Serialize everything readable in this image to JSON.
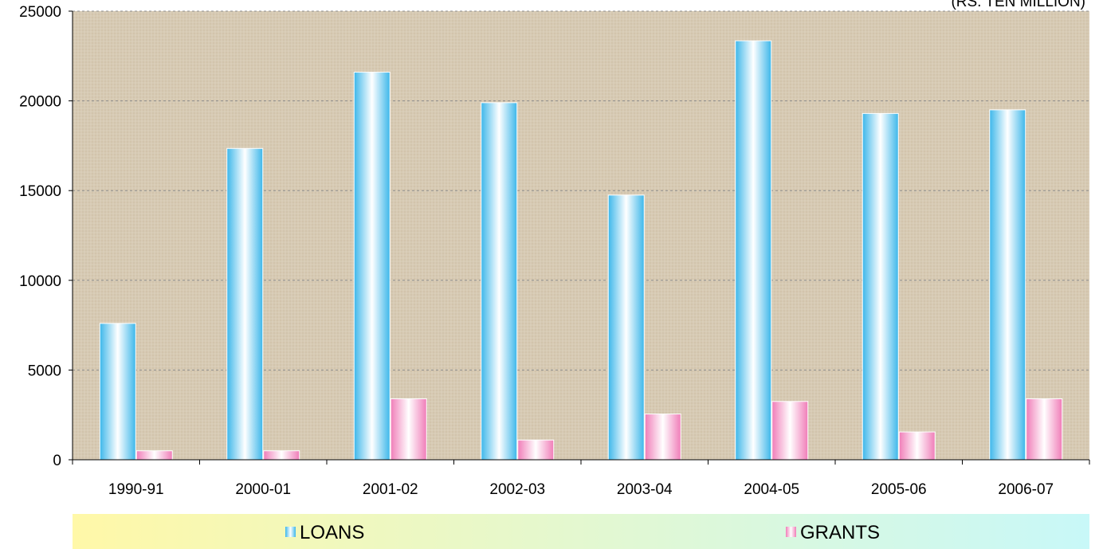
{
  "chart_data": {
    "type": "bar",
    "unit_label": "(RS. TEN MILLION)",
    "categories": [
      "1990-91",
      "2000-01",
      "2001-02",
      "2002-03",
      "2003-04",
      "2004-05",
      "2005-06",
      "2006-07"
    ],
    "series": [
      {
        "name": "LOANS",
        "values": [
          7600,
          17350,
          21600,
          19900,
          14750,
          23350,
          19300,
          19500
        ],
        "color": "#5BC8F0"
      },
      {
        "name": "GRANTS",
        "values": [
          500,
          500,
          3400,
          1100,
          2550,
          3250,
          1550,
          3400
        ],
        "color": "#F49AC8"
      }
    ],
    "ylim": [
      0,
      25000
    ],
    "yticks": [
      0,
      5000,
      10000,
      15000,
      20000,
      25000
    ],
    "grid": true,
    "legend_position": "bottom",
    "colors": {
      "plot_background": "#D8CCB6",
      "gridline": "#8C8C8C",
      "legend_background_left": "#FFF8A8",
      "legend_background_right": "#C8F8F8"
    }
  }
}
